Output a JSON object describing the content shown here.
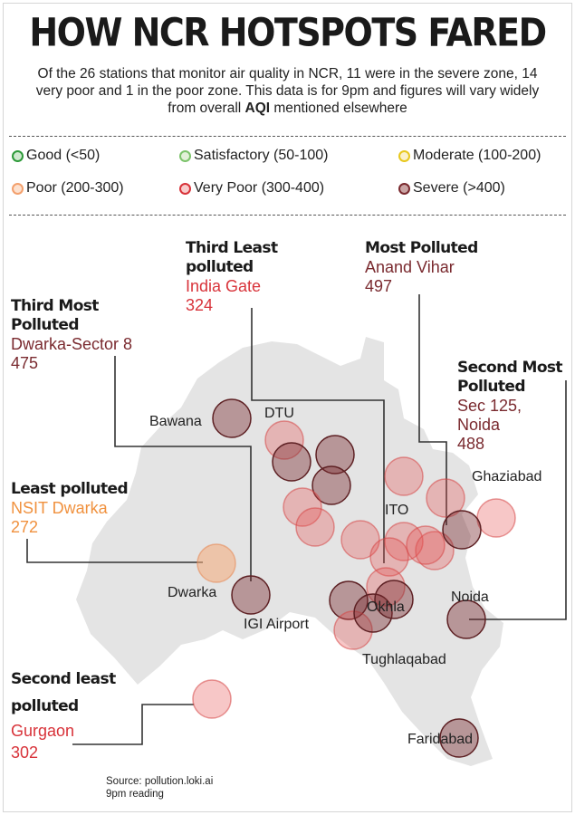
{
  "title": "HOW NCR HOTSPOTS FARED",
  "subtitle_parts": {
    "before": "Of the 26 stations that monitor air quality in NCR, 11 were in the severe zone, 14 very poor and 1 in the poor zone. This data is for 9pm and figures will vary widely from overall ",
    "bold": "AQI",
    "after": " mentioned elsewhere"
  },
  "legend": [
    {
      "label": "Good (<50)",
      "fill": "#cfe9cf",
      "stroke": "#2e9a3a"
    },
    {
      "label": "Satisfactory (50-100)",
      "fill": "#e2f0d8",
      "stroke": "#7cc36b"
    },
    {
      "label": "Moderate (100-200)",
      "fill": "#fbf1c9",
      "stroke": "#e8c81e"
    },
    {
      "label": "Poor (200-300)",
      "fill": "#fde1cf",
      "stroke": "#f3a06d"
    },
    {
      "label": "Very Poor (300-400)",
      "fill": "#f8cccc",
      "stroke": "#d8333a"
    },
    {
      "label": "Severe (>400)",
      "fill": "#caa4a4",
      "stroke": "#7a2a2f"
    }
  ],
  "callouts": {
    "third_least": {
      "heading": "Third Least polluted",
      "station": "India Gate",
      "value": "324",
      "color": "#d8333a"
    },
    "most": {
      "heading": "Most Polluted",
      "station": "Anand Vihar",
      "value": "497",
      "color": "#7a2a2f"
    },
    "third_most": {
      "heading": "Third Most Polluted",
      "station": "Dwarka-Sector 8",
      "value": "475",
      "color": "#7a2a2f"
    },
    "second_most": {
      "heading": "Second Most Polluted",
      "station": "Sec 125, Noida",
      "value": "488",
      "color": "#7a2a2f"
    },
    "least": {
      "heading": "Least polluted",
      "station": "NSIT Dwarka",
      "value": "272",
      "color": "#f0913e"
    },
    "second_least": {
      "heading": "Second least polluted",
      "station": "Gurgaon",
      "value": "302",
      "color": "#d8333a"
    }
  },
  "places": {
    "bawana": "Bawana",
    "dtu": "DTU",
    "ghaziabad": "Ghaziabad",
    "ito": "ITO",
    "dwarka": "Dwarka",
    "igi": "IGI Airport",
    "okhla": "Okhla",
    "noida": "Noida",
    "tughlaqabad": "Tughlaqabad",
    "faridabad": "Faridabad"
  },
  "stations": [
    {
      "category": "severe"
    },
    {
      "category": "very_poor"
    },
    {
      "category": "severe"
    },
    {
      "category": "severe"
    },
    {
      "category": "severe"
    },
    {
      "category": "very_poor"
    },
    {
      "category": "very_poor"
    },
    {
      "category": "very_poor"
    },
    {
      "category": "very_poor"
    },
    {
      "category": "very_poor"
    },
    {
      "category": "very_poor"
    },
    {
      "category": "very_poor"
    },
    {
      "category": "very_poor"
    },
    {
      "category": "severe"
    },
    {
      "category": "very_poor"
    },
    {
      "category": "very_poor"
    },
    {
      "category": "severe"
    },
    {
      "category": "very_poor"
    },
    {
      "category": "severe"
    },
    {
      "category": "severe"
    },
    {
      "category": "severe"
    },
    {
      "category": "poor"
    },
    {
      "category": "severe"
    },
    {
      "category": "very_poor"
    },
    {
      "category": "very_poor"
    },
    {
      "category": "severe"
    }
  ],
  "source": {
    "line1": "Source: pollution.loki.ai",
    "line2": "9pm reading"
  }
}
